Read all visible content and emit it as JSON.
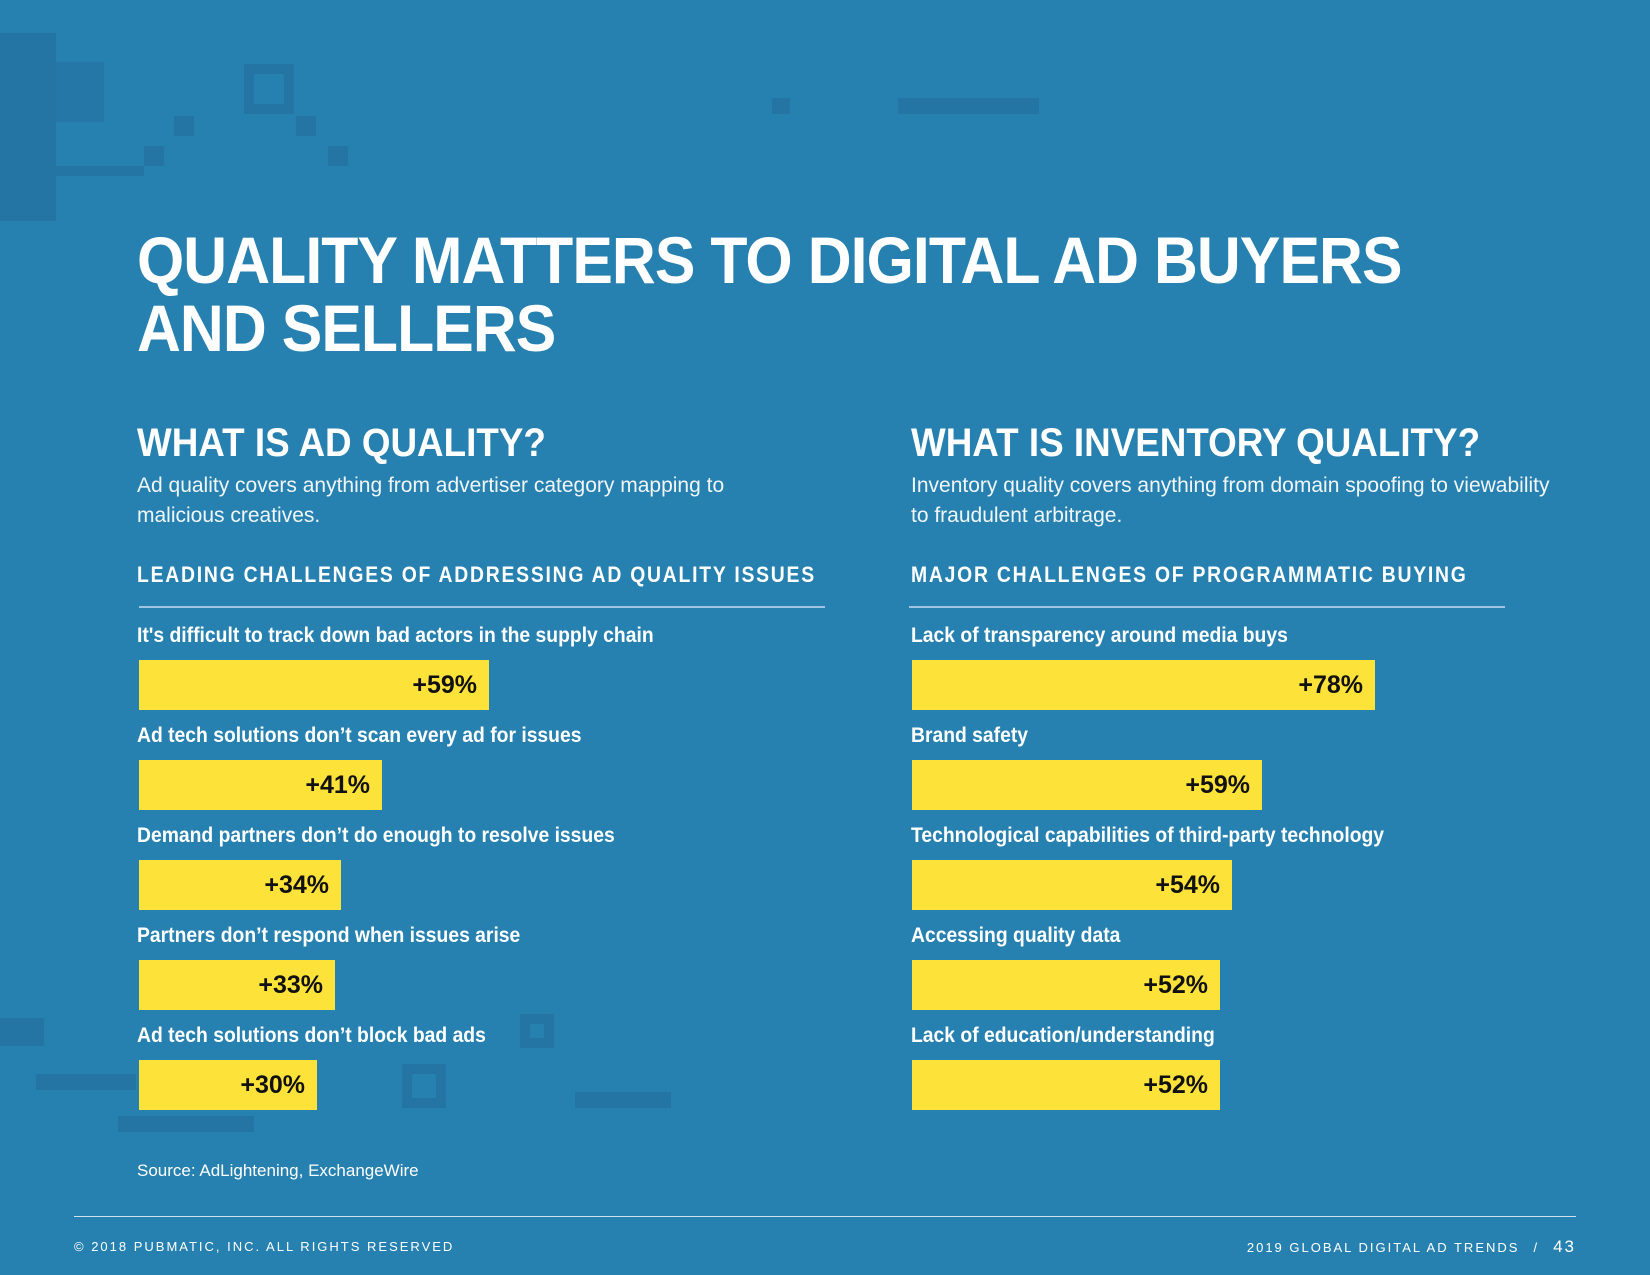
{
  "page": {
    "title_line1": "QUALITY MATTERS TO DIGITAL AD BUYERS",
    "title_line2": "AND SELLERS",
    "source": "Source: AdLightening, ExchangeWire",
    "footer_left": "© 2018 PUBMATIC, INC. ALL RIGHTS RESERVED",
    "footer_right": "2019 GLOBAL DIGITAL AD TRENDS",
    "footer_sep": "/",
    "page_number": "43"
  },
  "left": {
    "heading": "WHAT IS AD QUALITY?",
    "description": "Ad quality covers anything from advertiser category mapping to malicious creatives."
  },
  "right": {
    "heading": "WHAT IS INVENTORY QUALITY?",
    "description": "Inventory quality covers anything from domain spoofing to viewability to fraudulent arbitrage."
  },
  "colors": {
    "background": "#2781b0",
    "bar": "#fde339",
    "text": "#ffffff",
    "value_text": "#111111"
  },
  "chart_data": [
    {
      "type": "bar",
      "orientation": "horizontal",
      "title": "LEADING CHALLENGES OF ADDRESSING AD QUALITY ISSUES",
      "categories": [
        "It's difficult to track down bad actors in the supply chain",
        "Ad tech solutions don’t scan every ad for issues",
        "Demand partners don’t do enough to resolve issues",
        "Partners don’t respond when issues arise",
        "Ad tech solutions don’t block bad ads"
      ],
      "values": [
        59,
        41,
        34,
        33,
        30
      ],
      "value_labels": [
        "+59%",
        "+41%",
        "+34%",
        "+33%",
        "+30%"
      ],
      "xlim": [
        0,
        100
      ]
    },
    {
      "type": "bar",
      "orientation": "horizontal",
      "title": "MAJOR CHALLENGES OF PROGRAMMATIC BUYING",
      "categories": [
        "Lack of transparency around media buys",
        "Brand safety",
        "Technological capabilities of third-party technology",
        "Accessing quality data",
        "Lack of education/understanding"
      ],
      "values": [
        78,
        59,
        54,
        52,
        52
      ],
      "value_labels": [
        "+78%",
        "+59%",
        "+54%",
        "+52%",
        "+52%"
      ],
      "xlim": [
        0,
        100
      ]
    }
  ]
}
